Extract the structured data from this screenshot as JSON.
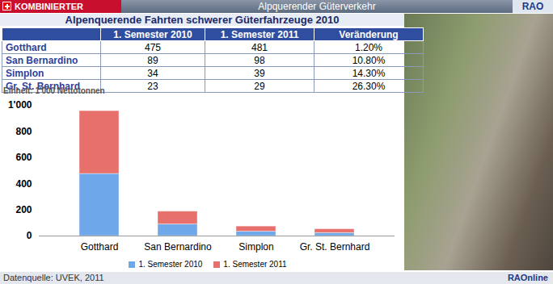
{
  "header": {
    "left": "KOMBINIERTER VERKEHR",
    "center": "Alpquerender Güterverkehr",
    "right": "RAO"
  },
  "table": {
    "title": "Alpenquerende Fahrten schwerer Güterfahrzeuge 2010",
    "columns": [
      "1. Semester 2010",
      "1. Semester 2011",
      "Veränderung"
    ],
    "rows": [
      {
        "label": "Gotthard",
        "cells": [
          475,
          481,
          "1.20%"
        ]
      },
      {
        "label": "San Bernardino",
        "cells": [
          89,
          98,
          "10.80%"
        ]
      },
      {
        "label": "Simplon",
        "cells": [
          34,
          39,
          "14.30%"
        ]
      },
      {
        "label": "Gr. St. Bernhard",
        "cells": [
          23,
          29,
          "26.30%"
        ]
      }
    ]
  },
  "chart_data": {
    "type": "bar",
    "subtitle": "Einheit: 1'000 Nettotonnen",
    "stacked": true,
    "categories": [
      "Gotthard",
      "San Bernardino",
      "Simplon",
      "Gr. St. Bernhard"
    ],
    "series": [
      {
        "name": "1. Semester 2010",
        "color": "#6fa8e8",
        "values": [
          475,
          89,
          34,
          23
        ]
      },
      {
        "name": "1. Semester 2011",
        "color": "#e8706c",
        "values": [
          481,
          98,
          39,
          29
        ]
      }
    ],
    "ylim": [
      0,
      1000
    ],
    "yticks": [
      0,
      200,
      400,
      600,
      800,
      {
        "value": 1000,
        "label": "1'000"
      }
    ],
    "grid": false,
    "legend": "bottom"
  },
  "footer": {
    "source": "Datenquelle: UVEK, 2011",
    "brand": "RAOnline"
  }
}
